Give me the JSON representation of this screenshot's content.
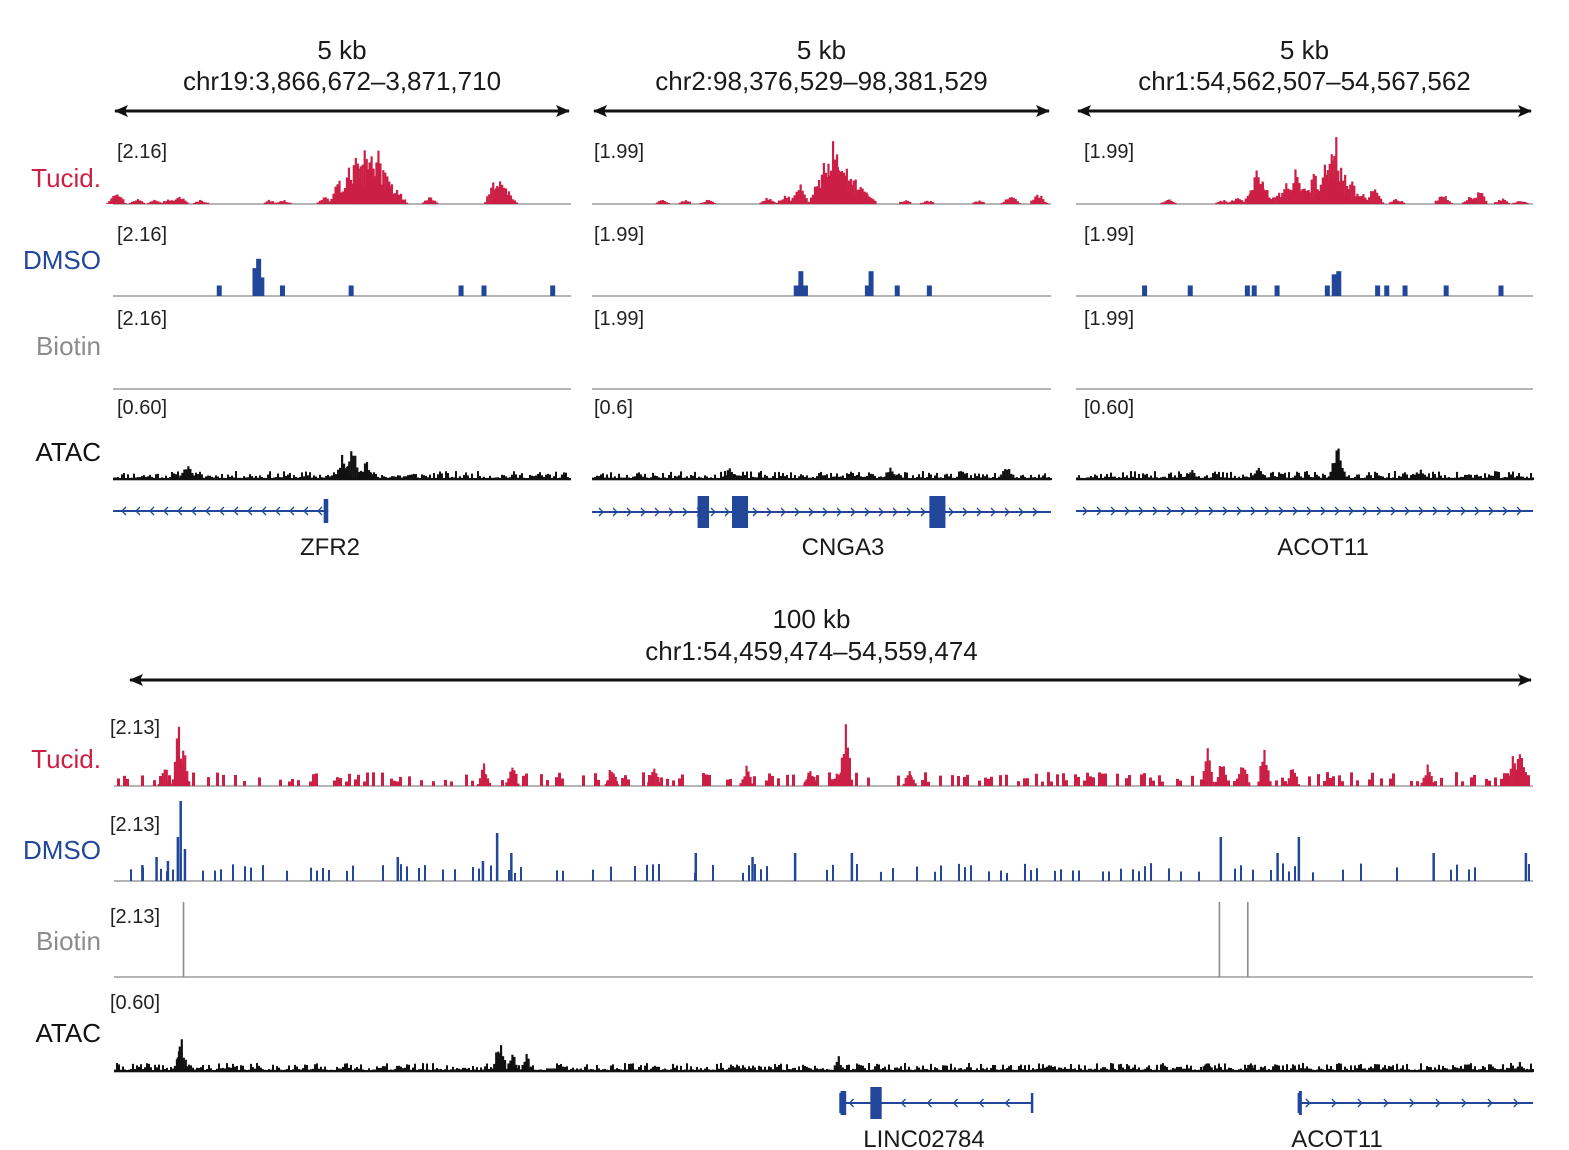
{
  "colors": {
    "tucid": "#cc1f45",
    "dmso": "#21469a",
    "biotin": "#8c8c8c",
    "atac": "#111111",
    "gene": "#21469a",
    "axis": "#b5b5b5",
    "arrow": "#111111"
  },
  "labels": {
    "tracks": [
      "Tucid.",
      "DMSO",
      "Biotin",
      "ATAC"
    ]
  },
  "chart_data": [
    {
      "type": "area",
      "title": "5 kb",
      "subtitle": "chr19:3,866,672–3,871,710",
      "tracks": [
        {
          "name": "Tucid.",
          "range": "[2.16]",
          "max": 2.16,
          "peaks": [
            {
              "pos": 0.005,
              "h": 0.22
            },
            {
              "pos": 0.05,
              "h": 0.08
            },
            {
              "pos": 0.09,
              "h": 0.08
            },
            {
              "pos": 0.12,
              "h": 0.08
            },
            {
              "pos": 0.145,
              "h": 0.12
            },
            {
              "pos": 0.19,
              "h": 0.06
            },
            {
              "pos": 0.34,
              "h": 0.06
            },
            {
              "pos": 0.37,
              "h": 0.06
            },
            {
              "pos": 0.46,
              "h": 0.1
            },
            {
              "pos": 0.49,
              "h": 0.35
            },
            {
              "pos": 0.515,
              "h": 0.55
            },
            {
              "pos": 0.53,
              "h": 0.75
            },
            {
              "pos": 0.545,
              "h": 0.95
            },
            {
              "pos": 0.56,
              "h": 0.7
            },
            {
              "pos": 0.575,
              "h": 0.85
            },
            {
              "pos": 0.59,
              "h": 0.6
            },
            {
              "pos": 0.6,
              "h": 0.4
            },
            {
              "pos": 0.62,
              "h": 0.2
            },
            {
              "pos": 0.69,
              "h": 0.1
            },
            {
              "pos": 0.83,
              "h": 0.35
            },
            {
              "pos": 0.845,
              "h": 0.45
            },
            {
              "pos": 0.86,
              "h": 0.2
            }
          ]
        },
        {
          "name": "DMSO",
          "range": "[2.16]",
          "max": 2.16,
          "bars": [
            {
              "pos": 0.232,
              "h": 0.17
            },
            {
              "pos": 0.31,
              "h": 0.45
            },
            {
              "pos": 0.318,
              "h": 0.6
            },
            {
              "pos": 0.325,
              "h": 0.3
            },
            {
              "pos": 0.37,
              "h": 0.17
            },
            {
              "pos": 0.52,
              "h": 0.17
            },
            {
              "pos": 0.76,
              "h": 0.17
            },
            {
              "pos": 0.81,
              "h": 0.17
            },
            {
              "pos": 0.96,
              "h": 0.17
            }
          ]
        },
        {
          "name": "Biotin",
          "range": "[2.16]",
          "max": 2.16,
          "bars": []
        },
        {
          "name": "ATAC",
          "range": "[0.60]",
          "max": 0.6,
          "noise_seed": 11,
          "peaks": [
            {
              "pos": 0.16,
              "h": 0.35
            },
            {
              "pos": 0.5,
              "h": 0.5
            },
            {
              "pos": 0.52,
              "h": 0.6
            },
            {
              "pos": 0.55,
              "h": 0.35
            }
          ]
        }
      ],
      "genes": [
        {
          "name": "ZFR2",
          "start": 0.0,
          "end": 0.47,
          "strand": "-",
          "exons": [
            [
              0.46,
              0.47
            ]
          ]
        }
      ]
    },
    {
      "type": "area",
      "title": "5 kb",
      "subtitle": "chr2:98,376,529–98,381,529",
      "tracks": [
        {
          "name": "Tucid.",
          "range": "[1.99]",
          "max": 1.99,
          "peaks": [
            {
              "pos": 0.15,
              "h": 0.06
            },
            {
              "pos": 0.2,
              "h": 0.06
            },
            {
              "pos": 0.25,
              "h": 0.06
            },
            {
              "pos": 0.38,
              "h": 0.1
            },
            {
              "pos": 0.42,
              "h": 0.15
            },
            {
              "pos": 0.45,
              "h": 0.3
            },
            {
              "pos": 0.49,
              "h": 0.4
            },
            {
              "pos": 0.505,
              "h": 0.7
            },
            {
              "pos": 0.515,
              "h": 0.6
            },
            {
              "pos": 0.525,
              "h": 1.0
            },
            {
              "pos": 0.54,
              "h": 0.75
            },
            {
              "pos": 0.555,
              "h": 0.55
            },
            {
              "pos": 0.57,
              "h": 0.4
            },
            {
              "pos": 0.585,
              "h": 0.3
            },
            {
              "pos": 0.6,
              "h": 0.15
            },
            {
              "pos": 0.68,
              "h": 0.06
            },
            {
              "pos": 0.73,
              "h": 0.06
            },
            {
              "pos": 0.84,
              "h": 0.06
            },
            {
              "pos": 0.91,
              "h": 0.15
            },
            {
              "pos": 0.97,
              "h": 0.15
            }
          ]
        },
        {
          "name": "DMSO",
          "range": "[1.99]",
          "max": 1.99,
          "bars": [
            {
              "pos": 0.445,
              "h": 0.17
            },
            {
              "pos": 0.455,
              "h": 0.4
            },
            {
              "pos": 0.465,
              "h": 0.17
            },
            {
              "pos": 0.6,
              "h": 0.17
            },
            {
              "pos": 0.608,
              "h": 0.4
            },
            {
              "pos": 0.665,
              "h": 0.17
            },
            {
              "pos": 0.735,
              "h": 0.17
            }
          ]
        },
        {
          "name": "Biotin",
          "range": "[1.99]",
          "max": 1.99,
          "bars": []
        },
        {
          "name": "ATAC",
          "range": "[0.6]",
          "max": 0.6,
          "noise_seed": 23,
          "peaks": [
            {
              "pos": 0.3,
              "h": 0.25
            },
            {
              "pos": 0.65,
              "h": 0.25
            },
            {
              "pos": 0.9,
              "h": 0.3
            }
          ]
        }
      ],
      "genes": [
        {
          "name": "CNGA3",
          "start": 0.0,
          "end": 1.0,
          "strand": "+",
          "exons": [
            [
              0.23,
              0.255
            ],
            [
              0.305,
              0.34
            ],
            [
              0.735,
              0.77
            ]
          ]
        }
      ]
    },
    {
      "type": "area",
      "title": "5 kb",
      "subtitle": "chr1:54,562,507–54,567,562",
      "tracks": [
        {
          "name": "Tucid.",
          "range": "[1.99]",
          "max": 1.99,
          "peaks": [
            {
              "pos": 0.2,
              "h": 0.08
            },
            {
              "pos": 0.32,
              "h": 0.06
            },
            {
              "pos": 0.35,
              "h": 0.1
            },
            {
              "pos": 0.38,
              "h": 0.15
            },
            {
              "pos": 0.4,
              "h": 0.4
            },
            {
              "pos": 0.395,
              "h": 0.6
            },
            {
              "pos": 0.41,
              "h": 0.3
            },
            {
              "pos": 0.44,
              "h": 0.2
            },
            {
              "pos": 0.46,
              "h": 0.3
            },
            {
              "pos": 0.48,
              "h": 0.5
            },
            {
              "pos": 0.5,
              "h": 0.3
            },
            {
              "pos": 0.52,
              "h": 0.45
            },
            {
              "pos": 0.54,
              "h": 0.6
            },
            {
              "pos": 0.555,
              "h": 0.75
            },
            {
              "pos": 0.565,
              "h": 1.0
            },
            {
              "pos": 0.58,
              "h": 0.55
            },
            {
              "pos": 0.6,
              "h": 0.35
            },
            {
              "pos": 0.62,
              "h": 0.2
            },
            {
              "pos": 0.65,
              "h": 0.25
            },
            {
              "pos": 0.7,
              "h": 0.08
            },
            {
              "pos": 0.8,
              "h": 0.15
            },
            {
              "pos": 0.86,
              "h": 0.1
            },
            {
              "pos": 0.88,
              "h": 0.2
            },
            {
              "pos": 0.93,
              "h": 0.08
            },
            {
              "pos": 0.97,
              "h": 0.06
            }
          ]
        },
        {
          "name": "DMSO",
          "range": "[1.99]",
          "max": 1.99,
          "bars": [
            {
              "pos": 0.15,
              "h": 0.17
            },
            {
              "pos": 0.25,
              "h": 0.17
            },
            {
              "pos": 0.375,
              "h": 0.17
            },
            {
              "pos": 0.39,
              "h": 0.17
            },
            {
              "pos": 0.44,
              "h": 0.17
            },
            {
              "pos": 0.55,
              "h": 0.17
            },
            {
              "pos": 0.565,
              "h": 0.35
            },
            {
              "pos": 0.575,
              "h": 0.4
            },
            {
              "pos": 0.66,
              "h": 0.17
            },
            {
              "pos": 0.68,
              "h": 0.17
            },
            {
              "pos": 0.72,
              "h": 0.17
            },
            {
              "pos": 0.81,
              "h": 0.17
            },
            {
              "pos": 0.93,
              "h": 0.17
            }
          ]
        },
        {
          "name": "Biotin",
          "range": "[1.99]",
          "max": 1.99,
          "bars": []
        },
        {
          "name": "ATAC",
          "range": "[0.60]",
          "max": 0.6,
          "noise_seed": 37,
          "peaks": [
            {
              "pos": 0.25,
              "h": 0.2
            },
            {
              "pos": 0.4,
              "h": 0.25
            },
            {
              "pos": 0.57,
              "h": 0.6
            },
            {
              "pos": 0.75,
              "h": 0.2
            }
          ]
        }
      ],
      "genes": [
        {
          "name": "ACOT11",
          "start": 0.0,
          "end": 1.0,
          "strand": "+",
          "exons": []
        }
      ]
    },
    {
      "type": "area",
      "title": "100 kb",
      "subtitle": "chr1:54,459,474–54,559,474",
      "tracks": [
        {
          "name": "Tucid.",
          "range": "[2.13]",
          "max": 2.13,
          "noise_seed": 5,
          "peaks": [
            {
              "pos": 0.045,
              "h": 0.9
            },
            {
              "pos": 0.048,
              "h": 0.6
            },
            {
              "pos": 0.035,
              "h": 0.3
            },
            {
              "pos": 0.26,
              "h": 0.3
            },
            {
              "pos": 0.28,
              "h": 0.4
            },
            {
              "pos": 0.35,
              "h": 0.3
            },
            {
              "pos": 0.38,
              "h": 0.4
            },
            {
              "pos": 0.445,
              "h": 0.3
            },
            {
              "pos": 0.49,
              "h": 0.3
            },
            {
              "pos": 0.51,
              "h": 0.25
            },
            {
              "pos": 0.515,
              "h": 0.9
            },
            {
              "pos": 0.56,
              "h": 0.25
            },
            {
              "pos": 0.77,
              "h": 0.55
            },
            {
              "pos": 0.78,
              "h": 0.4
            },
            {
              "pos": 0.795,
              "h": 0.4
            },
            {
              "pos": 0.81,
              "h": 0.65
            },
            {
              "pos": 0.83,
              "h": 0.3
            },
            {
              "pos": 0.925,
              "h": 0.35
            },
            {
              "pos": 0.99,
              "h": 0.65
            },
            {
              "pos": 0.985,
              "h": 0.45
            }
          ]
        },
        {
          "name": "DMSO",
          "range": "[2.13]",
          "max": 2.13,
          "bars": [
            {
              "pos": 0.03,
              "h": 0.3
            },
            {
              "pos": 0.045,
              "h": 0.55
            },
            {
              "pos": 0.047,
              "h": 1.0
            },
            {
              "pos": 0.05,
              "h": 0.4
            },
            {
              "pos": 0.038,
              "h": 0.25
            },
            {
              "pos": 0.02,
              "h": 0.2
            },
            {
              "pos": 0.27,
              "h": 0.6
            },
            {
              "pos": 0.28,
              "h": 0.35
            },
            {
              "pos": 0.26,
              "h": 0.25
            },
            {
              "pos": 0.2,
              "h": 0.3
            },
            {
              "pos": 0.41,
              "h": 0.35
            },
            {
              "pos": 0.45,
              "h": 0.3
            },
            {
              "pos": 0.48,
              "h": 0.35
            },
            {
              "pos": 0.52,
              "h": 0.35
            },
            {
              "pos": 0.78,
              "h": 0.55
            },
            {
              "pos": 0.82,
              "h": 0.35
            },
            {
              "pos": 0.835,
              "h": 0.55
            },
            {
              "pos": 0.93,
              "h": 0.35
            },
            {
              "pos": 0.995,
              "h": 0.35
            }
          ],
          "sparse_seed": 19
        },
        {
          "name": "Biotin",
          "range": "[2.13]",
          "max": 2.13,
          "bars": [
            {
              "pos": 0.049,
              "h": 1.0
            },
            {
              "pos": 0.779,
              "h": 1.0
            },
            {
              "pos": 0.799,
              "h": 1.0
            }
          ]
        },
        {
          "name": "ATAC",
          "range": "[0.60]",
          "max": 0.6,
          "noise_seed": 41,
          "peaks": [
            {
              "pos": 0.047,
              "h": 0.65
            },
            {
              "pos": 0.045,
              "h": 0.4
            },
            {
              "pos": 0.27,
              "h": 0.5
            },
            {
              "pos": 0.28,
              "h": 0.45
            },
            {
              "pos": 0.272,
              "h": 0.6
            },
            {
              "pos": 0.29,
              "h": 0.35
            },
            {
              "pos": 0.2,
              "h": 0.2
            },
            {
              "pos": 0.51,
              "h": 0.3
            },
            {
              "pos": 0.77,
              "h": 0.25
            },
            {
              "pos": 0.8,
              "h": 0.2
            },
            {
              "pos": 0.99,
              "h": 0.2
            }
          ]
        }
      ],
      "genes": [
        {
          "name": "LINC02784",
          "start": 0.512,
          "end": 0.647,
          "strand": "-",
          "exons": [
            [
              0.512,
              0.516
            ],
            [
              0.533,
              0.541
            ]
          ]
        },
        {
          "name": "ACOT11",
          "start": 0.835,
          "end": 1.0,
          "strand": "+",
          "exons": [
            [
              0.835,
              0.837
            ]
          ]
        }
      ]
    }
  ]
}
